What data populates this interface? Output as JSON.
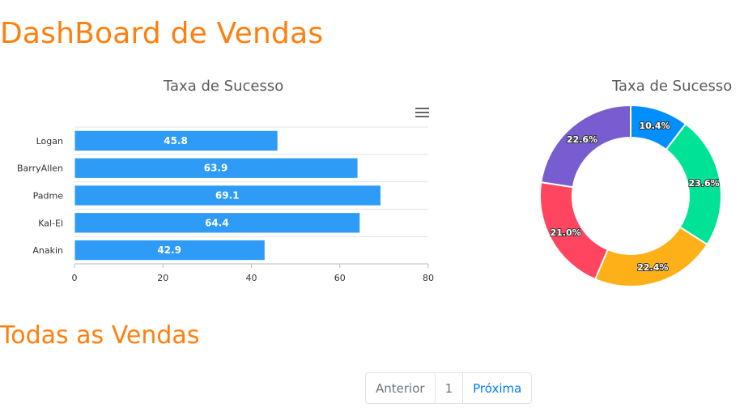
{
  "page": {
    "title": "DashBoard de Vendas",
    "section_title": "Todas as Vendas"
  },
  "charts": {
    "bar_title": "Taxa de Sucesso",
    "donut_title": "Taxa de Sucesso",
    "menu_icon": "hamburger-menu-icon"
  },
  "chart_data": [
    {
      "type": "bar",
      "title": "Taxa de Sucesso",
      "orientation": "horizontal",
      "categories": [
        "Logan",
        "BarryAllen",
        "Padme",
        "Kal-El",
        "Anakin"
      ],
      "values": [
        45.8,
        63.9,
        69.1,
        64.4,
        42.9
      ],
      "value_labels": [
        "45.8",
        "63.9",
        "69.1",
        "64.4",
        "42.9"
      ],
      "xlim": [
        0,
        80
      ],
      "xticks": [
        "0",
        "20",
        "40",
        "60",
        "80"
      ],
      "grid": true,
      "color": "#2E9BF7"
    },
    {
      "type": "pie",
      "style": "donut",
      "title": "Taxa de Sucesso",
      "values": [
        10.4,
        23.6,
        22.4,
        21.0,
        22.6
      ],
      "labels": [
        "10.4%",
        "23.6%",
        "22.4%",
        "21.0%",
        "22.6%"
      ],
      "colors": [
        "#008FFB",
        "#00E396",
        "#FEB019",
        "#FF4560",
        "#775DD0"
      ]
    }
  ],
  "pagination": {
    "prev_label": "Anterior",
    "page_label": "1",
    "next_label": "Próxima"
  }
}
